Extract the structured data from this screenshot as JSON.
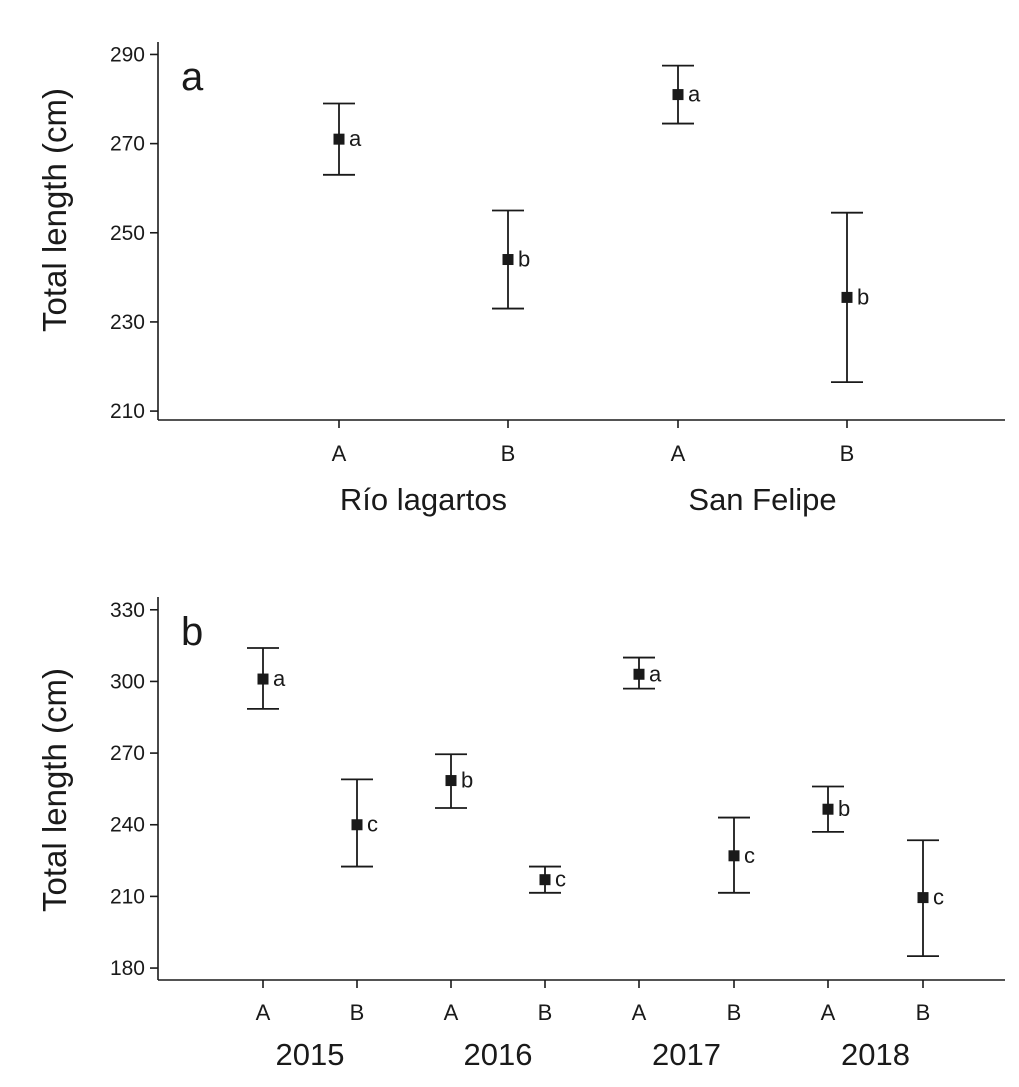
{
  "chart_data": [
    {
      "type": "scatter",
      "panel_label": "a",
      "ylabel": "Total length  (cm)",
      "ylim": [
        208,
        291
      ],
      "yticks": [
        210,
        230,
        250,
        270,
        290
      ],
      "groups": [
        {
          "name": "Río lagartos",
          "categories": [
            "A",
            "B"
          ]
        },
        {
          "name": "San Felipe",
          "categories": [
            "A",
            "B"
          ]
        }
      ],
      "points": [
        {
          "group": "Río lagartos",
          "category": "A",
          "mean": 271,
          "lower": 263,
          "upper": 279,
          "letter": "a"
        },
        {
          "group": "Río lagartos",
          "category": "B",
          "mean": 244,
          "lower": 233,
          "upper": 255,
          "letter": "b"
        },
        {
          "group": "San Felipe",
          "category": "A",
          "mean": 281,
          "lower": 274.5,
          "upper": 287.5,
          "letter": "a"
        },
        {
          "group": "San Felipe",
          "category": "B",
          "mean": 235.5,
          "lower": 216.5,
          "upper": 254.5,
          "letter": "b"
        }
      ],
      "grid": false
    },
    {
      "type": "scatter",
      "panel_label": "b",
      "ylabel": "Total length  (cm)",
      "ylim": [
        175,
        332
      ],
      "yticks": [
        180,
        210,
        240,
        270,
        300,
        330
      ],
      "groups": [
        {
          "name": "2015",
          "categories": [
            "A",
            "B"
          ]
        },
        {
          "name": "2016",
          "categories": [
            "A",
            "B"
          ]
        },
        {
          "name": "2017",
          "categories": [
            "A",
            "B"
          ]
        },
        {
          "name": "2018",
          "categories": [
            "A",
            "B"
          ]
        }
      ],
      "points": [
        {
          "group": "2015",
          "category": "A",
          "mean": 301,
          "lower": 288.5,
          "upper": 314,
          "letter": "a"
        },
        {
          "group": "2015",
          "category": "B",
          "mean": 240,
          "lower": 222.5,
          "upper": 259,
          "letter": "c"
        },
        {
          "group": "2016",
          "category": "A",
          "mean": 258.5,
          "lower": 247,
          "upper": 269.5,
          "letter": "b"
        },
        {
          "group": "2016",
          "category": "B",
          "mean": 217,
          "lower": 211.5,
          "upper": 222.5,
          "letter": "c"
        },
        {
          "group": "2017",
          "category": "A",
          "mean": 303,
          "lower": 297,
          "upper": 310,
          "letter": "a"
        },
        {
          "group": "2017",
          "category": "B",
          "mean": 227,
          "lower": 211.5,
          "upper": 243,
          "letter": "c"
        },
        {
          "group": "2018",
          "category": "A",
          "mean": 246.5,
          "lower": 237,
          "upper": 256,
          "letter": "b"
        },
        {
          "group": "2018",
          "category": "B",
          "mean": 209.5,
          "lower": 185,
          "upper": 233.5,
          "letter": "c"
        }
      ],
      "grid": false
    }
  ]
}
